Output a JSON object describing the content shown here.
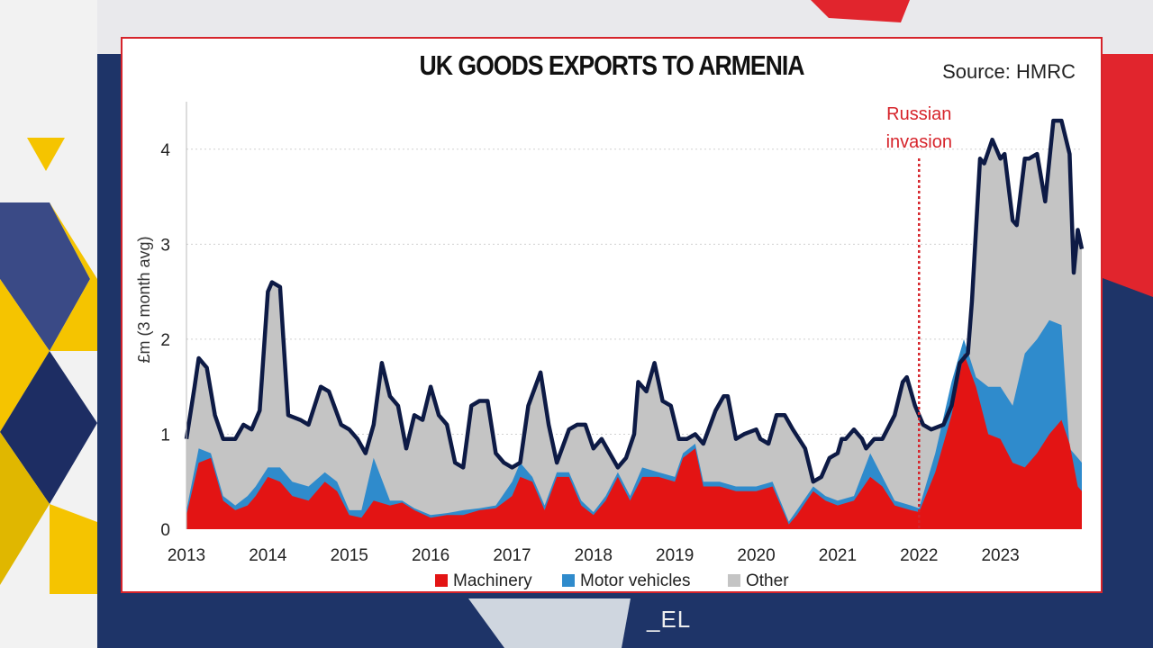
{
  "page": {
    "watermark": "_EL"
  },
  "chart_data": {
    "type": "area",
    "title": "UK GOODS EXPORTS TO ARMENIA",
    "source": "Source: HMRC",
    "ylabel": "£m (3 month avg)",
    "xlabel": "",
    "x_start": 2013,
    "x_end": 2024,
    "ylim": [
      0,
      4.5
    ],
    "y_ticks": [
      0,
      1,
      2,
      3,
      4
    ],
    "x_ticks": [
      2013,
      2014,
      2015,
      2016,
      2017,
      2018,
      2019,
      2020,
      2021,
      2022,
      2023
    ],
    "grid": "horizontal dotted",
    "legend_position": "bottom",
    "colors": {
      "machinery": "#e31414",
      "motor": "#2f8bcc",
      "other": "#c4c4c4",
      "total": "#0d1a45",
      "annotation": "#d6242b"
    },
    "annotation": {
      "lines": [
        "Russian",
        "invasion"
      ],
      "x": 2022.0
    },
    "series": [
      {
        "name": "Machinery",
        "key": "machinery",
        "points": [
          [
            2013.0,
            0.15
          ],
          [
            2013.15,
            0.7
          ],
          [
            2013.3,
            0.75
          ],
          [
            2013.45,
            0.3
          ],
          [
            2013.6,
            0.2
          ],
          [
            2013.75,
            0.25
          ],
          [
            2013.85,
            0.35
          ],
          [
            2014.0,
            0.55
          ],
          [
            2014.15,
            0.5
          ],
          [
            2014.3,
            0.35
          ],
          [
            2014.5,
            0.3
          ],
          [
            2014.7,
            0.5
          ],
          [
            2014.85,
            0.4
          ],
          [
            2015.0,
            0.15
          ],
          [
            2015.15,
            0.12
          ],
          [
            2015.3,
            0.3
          ],
          [
            2015.5,
            0.25
          ],
          [
            2015.65,
            0.28
          ],
          [
            2015.8,
            0.2
          ],
          [
            2016.0,
            0.12
          ],
          [
            2016.2,
            0.15
          ],
          [
            2016.4,
            0.15
          ],
          [
            2016.6,
            0.2
          ],
          [
            2016.8,
            0.22
          ],
          [
            2017.0,
            0.35
          ],
          [
            2017.1,
            0.55
          ],
          [
            2017.25,
            0.5
          ],
          [
            2017.4,
            0.2
          ],
          [
            2017.55,
            0.55
          ],
          [
            2017.7,
            0.55
          ],
          [
            2017.85,
            0.25
          ],
          [
            2018.0,
            0.15
          ],
          [
            2018.15,
            0.3
          ],
          [
            2018.3,
            0.55
          ],
          [
            2018.45,
            0.3
          ],
          [
            2018.6,
            0.55
          ],
          [
            2018.8,
            0.55
          ],
          [
            2019.0,
            0.5
          ],
          [
            2019.1,
            0.75
          ],
          [
            2019.25,
            0.85
          ],
          [
            2019.35,
            0.45
          ],
          [
            2019.55,
            0.45
          ],
          [
            2019.75,
            0.4
          ],
          [
            2020.0,
            0.4
          ],
          [
            2020.2,
            0.45
          ],
          [
            2020.4,
            0.05
          ],
          [
            2020.5,
            0.15
          ],
          [
            2020.7,
            0.4
          ],
          [
            2020.85,
            0.3
          ],
          [
            2021.0,
            0.25
          ],
          [
            2021.2,
            0.3
          ],
          [
            2021.4,
            0.55
          ],
          [
            2021.55,
            0.45
          ],
          [
            2021.7,
            0.25
          ],
          [
            2021.9,
            0.2
          ],
          [
            2022.0,
            0.18
          ],
          [
            2022.2,
            0.6
          ],
          [
            2022.4,
            1.2
          ],
          [
            2022.55,
            1.85
          ],
          [
            2022.7,
            1.5
          ],
          [
            2022.85,
            1.0
          ],
          [
            2023.0,
            0.95
          ],
          [
            2023.15,
            0.7
          ],
          [
            2023.3,
            0.65
          ],
          [
            2023.45,
            0.8
          ],
          [
            2023.6,
            1.0
          ],
          [
            2023.75,
            1.15
          ],
          [
            2023.85,
            0.9
          ],
          [
            2023.95,
            0.45
          ],
          [
            2024.0,
            0.4
          ]
        ]
      },
      {
        "name": "Motor vehicles",
        "key": "motor",
        "points": [
          [
            2013.0,
            0.2
          ],
          [
            2013.15,
            0.85
          ],
          [
            2013.3,
            0.8
          ],
          [
            2013.45,
            0.35
          ],
          [
            2013.6,
            0.25
          ],
          [
            2013.75,
            0.35
          ],
          [
            2013.85,
            0.45
          ],
          [
            2014.0,
            0.65
          ],
          [
            2014.15,
            0.65
          ],
          [
            2014.3,
            0.5
          ],
          [
            2014.5,
            0.45
          ],
          [
            2014.7,
            0.6
          ],
          [
            2014.85,
            0.5
          ],
          [
            2015.0,
            0.2
          ],
          [
            2015.15,
            0.2
          ],
          [
            2015.3,
            0.75
          ],
          [
            2015.5,
            0.3
          ],
          [
            2015.65,
            0.3
          ],
          [
            2015.8,
            0.22
          ],
          [
            2016.0,
            0.15
          ],
          [
            2016.2,
            0.17
          ],
          [
            2016.4,
            0.2
          ],
          [
            2016.6,
            0.22
          ],
          [
            2016.8,
            0.25
          ],
          [
            2017.0,
            0.5
          ],
          [
            2017.1,
            0.7
          ],
          [
            2017.25,
            0.55
          ],
          [
            2017.4,
            0.25
          ],
          [
            2017.55,
            0.6
          ],
          [
            2017.7,
            0.6
          ],
          [
            2017.85,
            0.3
          ],
          [
            2018.0,
            0.18
          ],
          [
            2018.15,
            0.35
          ],
          [
            2018.3,
            0.6
          ],
          [
            2018.45,
            0.35
          ],
          [
            2018.6,
            0.65
          ],
          [
            2018.8,
            0.6
          ],
          [
            2019.0,
            0.55
          ],
          [
            2019.1,
            0.8
          ],
          [
            2019.25,
            0.9
          ],
          [
            2019.35,
            0.5
          ],
          [
            2019.55,
            0.5
          ],
          [
            2019.75,
            0.45
          ],
          [
            2020.0,
            0.45
          ],
          [
            2020.2,
            0.5
          ],
          [
            2020.4,
            0.08
          ],
          [
            2020.5,
            0.2
          ],
          [
            2020.7,
            0.45
          ],
          [
            2020.85,
            0.35
          ],
          [
            2021.0,
            0.3
          ],
          [
            2021.2,
            0.35
          ],
          [
            2021.4,
            0.8
          ],
          [
            2021.55,
            0.55
          ],
          [
            2021.7,
            0.3
          ],
          [
            2021.9,
            0.25
          ],
          [
            2022.0,
            0.22
          ],
          [
            2022.2,
            0.8
          ],
          [
            2022.4,
            1.55
          ],
          [
            2022.55,
            2.0
          ],
          [
            2022.7,
            1.6
          ],
          [
            2022.85,
            1.5
          ],
          [
            2023.0,
            1.5
          ],
          [
            2023.15,
            1.3
          ],
          [
            2023.3,
            1.85
          ],
          [
            2023.45,
            2.0
          ],
          [
            2023.6,
            2.2
          ],
          [
            2023.75,
            2.15
          ],
          [
            2023.85,
            0.85
          ],
          [
            2023.95,
            0.75
          ],
          [
            2024.0,
            0.7
          ]
        ]
      },
      {
        "name": "Other",
        "key": "other",
        "points": [
          [
            2013.0,
            0.95
          ],
          [
            2013.1,
            1.5
          ],
          [
            2013.15,
            1.8
          ],
          [
            2013.25,
            1.7
          ],
          [
            2013.35,
            1.2
          ],
          [
            2013.45,
            0.95
          ],
          [
            2013.6,
            0.95
          ],
          [
            2013.7,
            1.1
          ],
          [
            2013.8,
            1.05
          ],
          [
            2013.9,
            1.25
          ],
          [
            2014.0,
            2.5
          ],
          [
            2014.05,
            2.6
          ],
          [
            2014.15,
            2.55
          ],
          [
            2014.25,
            1.2
          ],
          [
            2014.4,
            1.15
          ],
          [
            2014.5,
            1.1
          ],
          [
            2014.65,
            1.5
          ],
          [
            2014.75,
            1.45
          ],
          [
            2014.9,
            1.1
          ],
          [
            2015.0,
            1.05
          ],
          [
            2015.1,
            0.95
          ],
          [
            2015.2,
            0.8
          ],
          [
            2015.3,
            1.1
          ],
          [
            2015.4,
            1.75
          ],
          [
            2015.5,
            1.4
          ],
          [
            2015.6,
            1.3
          ],
          [
            2015.7,
            0.85
          ],
          [
            2015.8,
            1.2
          ],
          [
            2015.9,
            1.15
          ],
          [
            2016.0,
            1.5
          ],
          [
            2016.1,
            1.2
          ],
          [
            2016.2,
            1.1
          ],
          [
            2016.3,
            0.7
          ],
          [
            2016.4,
            0.65
          ],
          [
            2016.5,
            1.3
          ],
          [
            2016.6,
            1.35
          ],
          [
            2016.7,
            1.35
          ],
          [
            2016.8,
            0.8
          ],
          [
            2016.9,
            0.7
          ],
          [
            2017.0,
            0.65
          ],
          [
            2017.1,
            0.7
          ],
          [
            2017.2,
            1.3
          ],
          [
            2017.35,
            1.65
          ],
          [
            2017.45,
            1.1
          ],
          [
            2017.55,
            0.7
          ],
          [
            2017.7,
            1.05
          ],
          [
            2017.8,
            1.1
          ],
          [
            2017.9,
            1.1
          ],
          [
            2018.0,
            0.85
          ],
          [
            2018.1,
            0.95
          ],
          [
            2018.2,
            0.8
          ],
          [
            2018.3,
            0.65
          ],
          [
            2018.4,
            0.75
          ],
          [
            2018.5,
            1.0
          ],
          [
            2018.55,
            1.55
          ],
          [
            2018.65,
            1.45
          ],
          [
            2018.75,
            1.75
          ],
          [
            2018.85,
            1.35
          ],
          [
            2018.95,
            1.3
          ],
          [
            2019.05,
            0.95
          ],
          [
            2019.15,
            0.95
          ],
          [
            2019.25,
            1.0
          ],
          [
            2019.35,
            0.9
          ],
          [
            2019.5,
            1.25
          ],
          [
            2019.6,
            1.4
          ],
          [
            2019.65,
            1.4
          ],
          [
            2019.75,
            0.95
          ],
          [
            2019.85,
            1.0
          ],
          [
            2020.0,
            1.05
          ],
          [
            2020.05,
            0.95
          ],
          [
            2020.15,
            0.9
          ],
          [
            2020.25,
            1.2
          ],
          [
            2020.35,
            1.2
          ],
          [
            2020.45,
            1.05
          ],
          [
            2020.6,
            0.85
          ],
          [
            2020.7,
            0.5
          ],
          [
            2020.8,
            0.55
          ],
          [
            2020.9,
            0.75
          ],
          [
            2021.0,
            0.8
          ],
          [
            2021.05,
            0.95
          ],
          [
            2021.1,
            0.95
          ],
          [
            2021.2,
            1.05
          ],
          [
            2021.3,
            0.95
          ],
          [
            2021.35,
            0.85
          ],
          [
            2021.45,
            0.95
          ],
          [
            2021.55,
            0.95
          ],
          [
            2021.7,
            1.2
          ],
          [
            2021.8,
            1.55
          ],
          [
            2021.85,
            1.6
          ],
          [
            2021.95,
            1.3
          ],
          [
            2022.05,
            1.1
          ],
          [
            2022.15,
            1.05
          ],
          [
            2022.3,
            1.1
          ],
          [
            2022.4,
            1.3
          ],
          [
            2022.5,
            1.75
          ],
          [
            2022.6,
            1.85
          ],
          [
            2022.65,
            2.4
          ],
          [
            2022.75,
            3.9
          ],
          [
            2022.8,
            3.85
          ],
          [
            2022.9,
            4.1
          ],
          [
            2023.0,
            3.9
          ],
          [
            2023.05,
            3.95
          ],
          [
            2023.15,
            3.25
          ],
          [
            2023.2,
            3.2
          ],
          [
            2023.3,
            3.9
          ],
          [
            2023.35,
            3.9
          ],
          [
            2023.45,
            3.95
          ],
          [
            2023.55,
            3.45
          ],
          [
            2023.65,
            4.3
          ],
          [
            2023.75,
            4.3
          ],
          [
            2023.85,
            3.95
          ],
          [
            2023.9,
            2.7
          ],
          [
            2023.95,
            3.15
          ],
          [
            2024.0,
            2.95
          ]
        ]
      }
    ]
  }
}
